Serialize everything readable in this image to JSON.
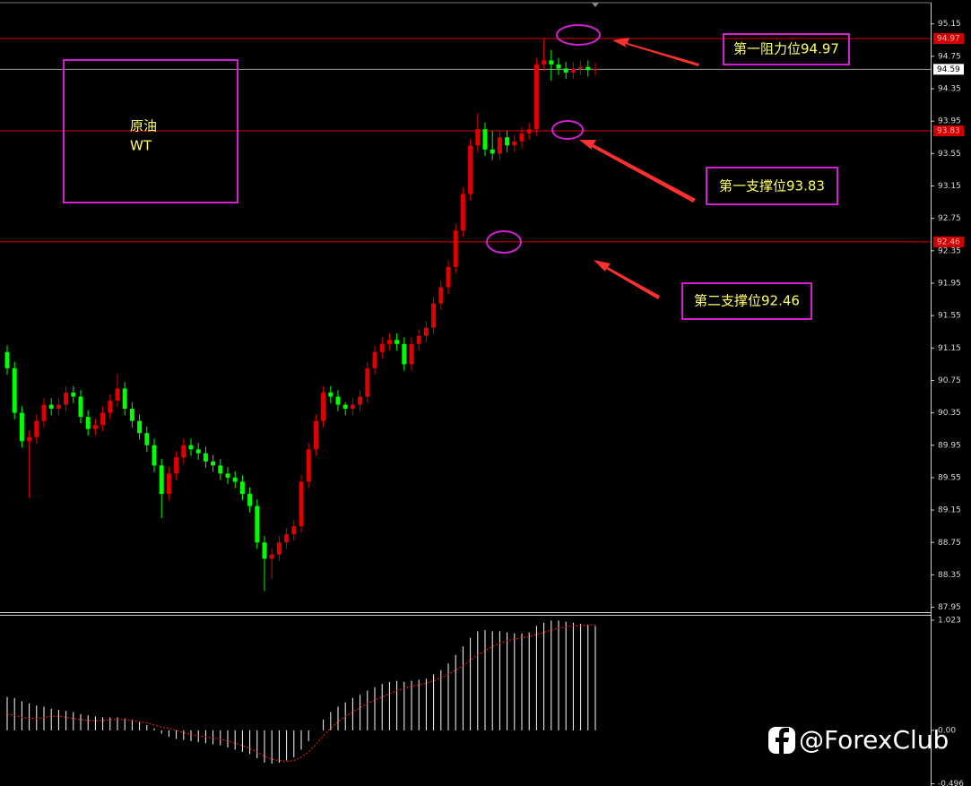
{
  "chart_data": [
    {
      "type": "candlestick",
      "open": [
        91.1,
        90.9,
        90.35,
        90.0,
        90.05,
        90.25,
        90.45,
        90.4,
        90.45,
        90.6,
        90.55,
        90.3,
        90.15,
        90.2,
        90.35,
        90.5,
        90.65,
        90.4,
        90.25,
        90.1,
        89.95,
        89.7,
        89.35,
        89.6,
        89.8,
        89.95,
        89.9,
        89.85,
        89.75,
        89.7,
        89.6,
        89.55,
        89.5,
        89.35,
        89.2,
        88.75,
        88.55,
        88.6,
        88.75,
        88.85,
        88.95,
        89.5,
        89.9,
        90.25,
        90.6,
        90.55,
        90.45,
        90.4,
        90.45,
        90.55,
        90.9,
        91.1,
        91.2,
        91.25,
        91.2,
        90.95,
        91.2,
        91.3,
        91.4,
        91.7,
        91.9,
        92.15,
        92.6,
        93.05,
        93.65,
        93.85,
        93.6,
        93.55,
        93.75,
        93.65,
        93.7,
        93.8,
        93.85,
        94.65,
        94.7,
        94.65,
        94.6,
        94.55,
        94.6,
        94.62,
        94.58
      ],
      "high": [
        91.18,
        90.98,
        90.43,
        90.13,
        90.33,
        90.53,
        90.53,
        90.53,
        90.68,
        90.68,
        90.63,
        90.38,
        90.28,
        90.43,
        90.58,
        90.83,
        90.73,
        90.48,
        90.33,
        90.18,
        90.03,
        89.78,
        89.68,
        89.88,
        90.03,
        90.03,
        89.98,
        89.93,
        89.83,
        89.78,
        89.68,
        89.63,
        89.58,
        89.43,
        89.28,
        88.83,
        88.68,
        88.83,
        88.93,
        89.03,
        89.58,
        89.98,
        90.33,
        90.68,
        90.68,
        90.63,
        90.48,
        90.53,
        90.63,
        90.98,
        91.18,
        91.28,
        91.33,
        91.33,
        91.28,
        91.28,
        91.38,
        91.48,
        91.78,
        91.98,
        92.23,
        92.68,
        93.13,
        93.73,
        94.05,
        93.93,
        93.83,
        93.83,
        93.83,
        93.78,
        93.88,
        93.93,
        94.73,
        94.97,
        94.83,
        94.73,
        94.68,
        94.68,
        94.7,
        94.7,
        94.67
      ],
      "low": [
        90.82,
        90.27,
        89.92,
        89.3,
        89.97,
        90.17,
        90.32,
        90.32,
        90.37,
        90.47,
        90.22,
        90.07,
        90.07,
        90.12,
        90.27,
        90.42,
        90.32,
        90.17,
        90.02,
        89.87,
        89.62,
        89.05,
        89.27,
        89.52,
        89.72,
        89.82,
        89.77,
        89.67,
        89.62,
        89.52,
        89.47,
        89.42,
        89.27,
        89.12,
        88.67,
        88.15,
        88.3,
        88.52,
        88.67,
        88.77,
        88.87,
        89.42,
        89.82,
        90.17,
        90.47,
        90.37,
        90.32,
        90.32,
        90.37,
        90.47,
        90.82,
        91.02,
        91.12,
        91.12,
        90.87,
        90.87,
        91.12,
        91.22,
        91.32,
        91.62,
        91.82,
        92.07,
        92.52,
        92.97,
        93.57,
        93.52,
        93.47,
        93.47,
        93.57,
        93.57,
        93.62,
        93.72,
        93.77,
        94.57,
        94.45,
        94.52,
        94.47,
        94.47,
        94.52,
        94.5,
        94.51
      ],
      "close": [
        90.9,
        90.35,
        90.0,
        90.05,
        90.25,
        90.45,
        90.4,
        90.45,
        90.6,
        90.55,
        90.3,
        90.15,
        90.2,
        90.35,
        90.5,
        90.65,
        90.4,
        90.25,
        90.1,
        89.95,
        89.7,
        89.35,
        89.6,
        89.8,
        89.95,
        89.9,
        89.85,
        89.75,
        89.7,
        89.6,
        89.55,
        89.5,
        89.35,
        89.2,
        88.75,
        88.55,
        88.6,
        88.75,
        88.85,
        88.95,
        89.5,
        89.9,
        90.25,
        90.6,
        90.55,
        90.45,
        90.4,
        90.45,
        90.55,
        90.9,
        91.1,
        91.2,
        91.25,
        91.2,
        90.95,
        91.2,
        91.3,
        91.4,
        91.7,
        91.9,
        92.15,
        92.6,
        93.05,
        93.65,
        93.85,
        93.6,
        93.55,
        93.75,
        93.65,
        93.7,
        93.8,
        93.85,
        94.65,
        94.7,
        94.65,
        94.6,
        94.55,
        94.6,
        94.62,
        94.58,
        94.59
      ],
      "up_color": "#e00000",
      "down_color": "#00ff00",
      "ylim": [
        87.89,
        95.39
      ],
      "yticks": [
        95.15,
        94.75,
        94.35,
        93.95,
        93.55,
        93.15,
        92.75,
        92.35,
        91.95,
        91.55,
        91.15,
        90.75,
        90.35,
        89.95,
        89.55,
        89.15,
        88.75,
        88.35,
        87.95
      ],
      "levels": [
        {
          "value": 94.97,
          "color": "#e00000"
        },
        {
          "value": 94.59,
          "color": "#9a9a9a"
        },
        {
          "value": 93.83,
          "color": "#e00000"
        },
        {
          "value": 92.46,
          "color": "#e00000"
        }
      ],
      "annotations": [
        "第一阻力位94.97",
        "第一支撑位93.83",
        "第二支撑位92.46"
      ],
      "symbol": [
        "原油",
        "WT"
      ]
    },
    {
      "type": "macd",
      "values": [
        0.31,
        0.3,
        0.27,
        0.25,
        0.23,
        0.22,
        0.2,
        0.19,
        0.18,
        0.17,
        0.15,
        0.14,
        0.13,
        0.12,
        0.12,
        0.12,
        0.11,
        0.1,
        0.08,
        0.05,
        0.02,
        -0.03,
        -0.06,
        -0.08,
        -0.09,
        -0.1,
        -0.11,
        -0.12,
        -0.13,
        -0.14,
        -0.16,
        -0.18,
        -0.2,
        -0.22,
        -0.26,
        -0.3,
        -0.31,
        -0.3,
        -0.28,
        -0.25,
        -0.18,
        -0.1,
        0.0,
        0.1,
        0.17,
        0.22,
        0.26,
        0.3,
        0.33,
        0.37,
        0.4,
        0.43,
        0.45,
        0.46,
        0.45,
        0.46,
        0.47,
        0.48,
        0.52,
        0.56,
        0.62,
        0.7,
        0.78,
        0.86,
        0.92,
        0.93,
        0.92,
        0.92,
        0.91,
        0.9,
        0.9,
        0.91,
        0.97,
        1.0,
        1.02,
        1.02,
        1.01,
        1.0,
        0.99,
        0.98,
        0.97
      ],
      "color": "#ffffff",
      "signal": [
        0.15,
        0.14,
        0.12,
        0.11,
        0.11,
        0.12,
        0.13,
        0.13,
        0.12,
        0.11,
        0.1,
        0.09,
        0.09,
        0.09,
        0.1,
        0.1,
        0.1,
        0.09,
        0.08,
        0.07,
        0.05,
        0.03,
        0.02,
        0.0,
        -0.02,
        -0.04,
        -0.05,
        -0.06,
        -0.07,
        -0.08,
        -0.1,
        -0.12,
        -0.14,
        -0.17,
        -0.2,
        -0.24,
        -0.27,
        -0.28,
        -0.29,
        -0.28,
        -0.25,
        -0.2,
        -0.13,
        -0.05,
        0.02,
        0.08,
        0.13,
        0.17,
        0.21,
        0.25,
        0.28,
        0.31,
        0.34,
        0.37,
        0.39,
        0.41,
        0.42,
        0.44,
        0.46,
        0.49,
        0.52,
        0.56,
        0.6,
        0.65,
        0.7,
        0.74,
        0.78,
        0.81,
        0.83,
        0.85,
        0.86,
        0.87,
        0.89,
        0.91,
        0.93,
        0.95,
        0.96,
        0.97,
        0.97,
        0.98,
        0.98
      ],
      "signal_color": "#ff2020",
      "ylim": [
        -0.517,
        1.073
      ],
      "yticks": [
        1.023,
        {
          "value": 0,
          "label": "0.00"
        },
        -0.496
      ]
    }
  ],
  "watermark": "@ForexClub"
}
